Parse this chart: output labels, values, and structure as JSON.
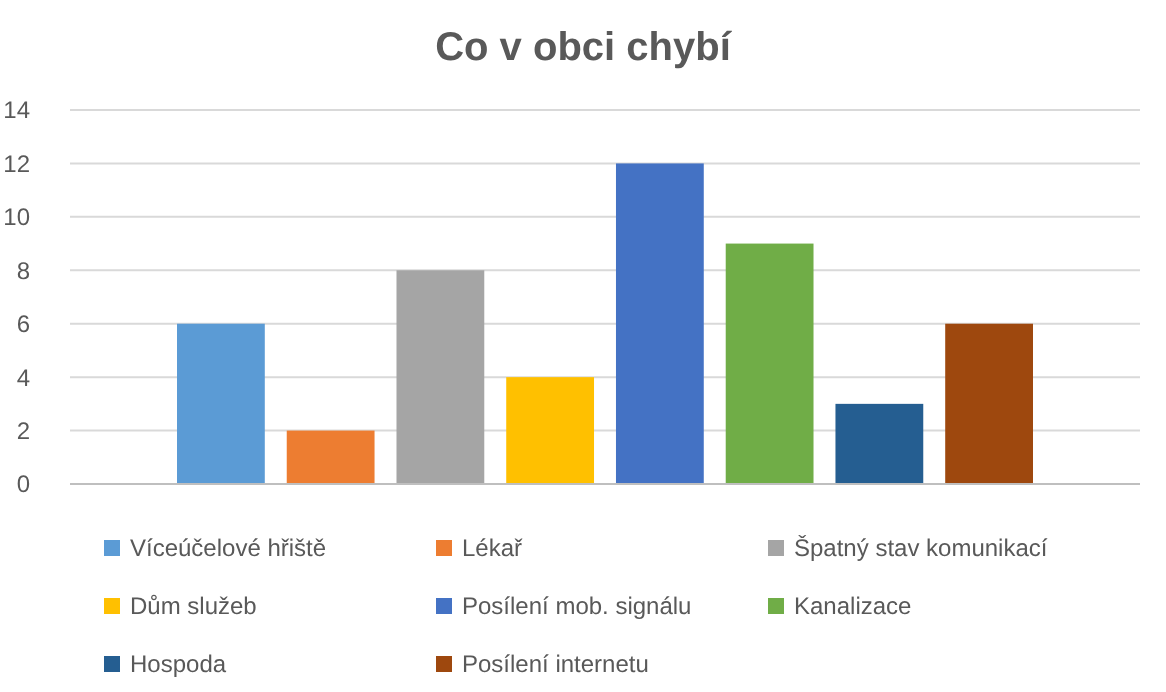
{
  "chart_data": {
    "type": "bar",
    "title": "Co v obci chybí",
    "categories": [
      null
    ],
    "ylim": [
      0,
      14
    ],
    "yticks": [
      0,
      2,
      4,
      6,
      8,
      10,
      12,
      14
    ],
    "grid": "y",
    "legend": "bottom",
    "series": [
      {
        "name": "Víceúčelové hřiště",
        "color": "#5b9bd5",
        "values": [
          6
        ]
      },
      {
        "name": "Lékař",
        "color": "#ed7d31",
        "values": [
          2
        ]
      },
      {
        "name": "Špatný stav komunikací",
        "color": "#a5a5a5",
        "values": [
          8
        ]
      },
      {
        "name": "Dům služeb",
        "color": "#ffc000",
        "values": [
          4
        ]
      },
      {
        "name": "Posílení mob. signálu",
        "color": "#4472c4",
        "values": [
          12
        ]
      },
      {
        "name": "Kanalizace",
        "color": "#70ad47",
        "values": [
          9
        ]
      },
      {
        "name": "Hospoda",
        "color": "#255e91",
        "values": [
          3
        ]
      },
      {
        "name": "Posílení internetu",
        "color": "#9e480e",
        "values": [
          6
        ]
      }
    ]
  }
}
